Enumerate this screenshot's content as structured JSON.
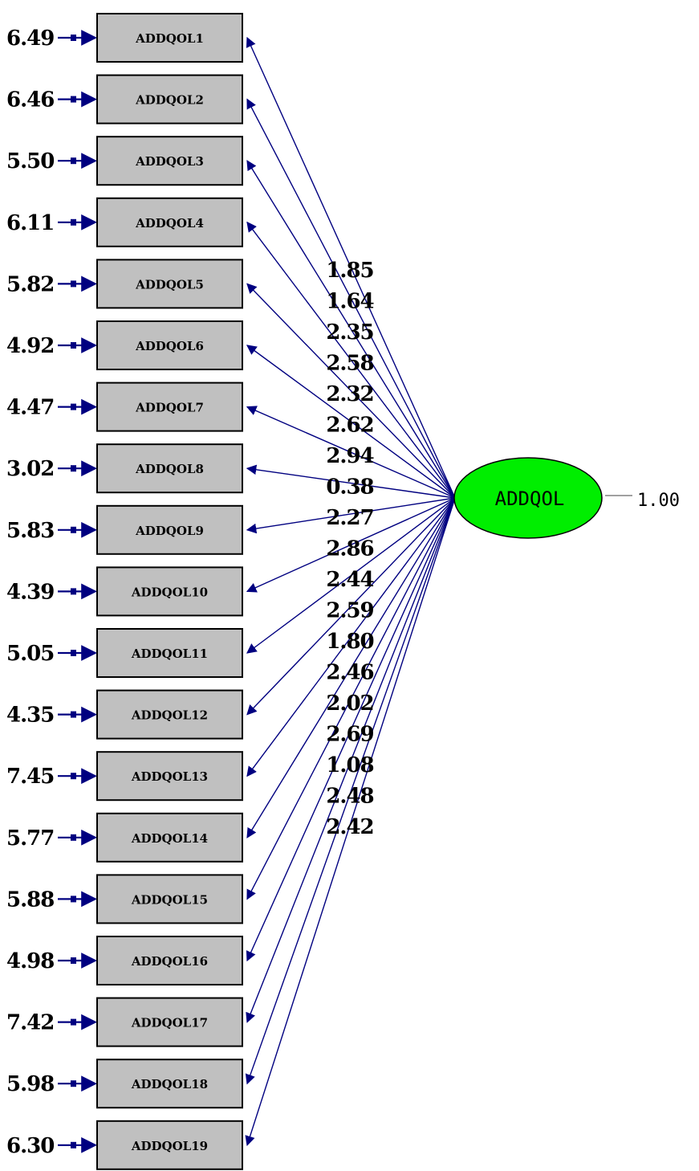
{
  "latent": {
    "label": "ADDQOL",
    "variance": "1.00",
    "fill_color": "#00ee00"
  },
  "colors": {
    "path": "#000080",
    "box_fill": "#c0c0c0",
    "latent_fill": "#00ee00"
  },
  "indicators": [
    {
      "label": "ADDQOL1",
      "error": "6.49",
      "loading": "1.85"
    },
    {
      "label": "ADDQOL2",
      "error": "6.46",
      "loading": "1.64"
    },
    {
      "label": "ADDQOL3",
      "error": "5.50",
      "loading": "2.35"
    },
    {
      "label": "ADDQOL4",
      "error": "6.11",
      "loading": "2.58"
    },
    {
      "label": "ADDQOL5",
      "error": "5.82",
      "loading": "2.32"
    },
    {
      "label": "ADDQOL6",
      "error": "4.92",
      "loading": "2.62"
    },
    {
      "label": "ADDQOL7",
      "error": "4.47",
      "loading": "2.94"
    },
    {
      "label": "ADDQOL8",
      "error": "3.02",
      "loading": "0.38"
    },
    {
      "label": "ADDQOL9",
      "error": "5.83",
      "loading": "2.27"
    },
    {
      "label": "ADDQOL10",
      "error": "4.39",
      "loading": "2.86"
    },
    {
      "label": "ADDQOL11",
      "error": "5.05",
      "loading": "2.44"
    },
    {
      "label": "ADDQOL12",
      "error": "4.35",
      "loading": "2.59"
    },
    {
      "label": "ADDQOL13",
      "error": "7.45",
      "loading": "1.80"
    },
    {
      "label": "ADDQOL14",
      "error": "5.77",
      "loading": "2.46"
    },
    {
      "label": "ADDQOL15",
      "error": "5.88",
      "loading": "2.02"
    },
    {
      "label": "ADDQOL16",
      "error": "4.98",
      "loading": "2.69"
    },
    {
      "label": "ADDQOL17",
      "error": "7.42",
      "loading": "1.08"
    },
    {
      "label": "ADDQOL18",
      "error": "5.98",
      "loading": "2.48"
    },
    {
      "label": "ADDQOL19",
      "error": "6.30",
      "loading": "2.42"
    }
  ]
}
